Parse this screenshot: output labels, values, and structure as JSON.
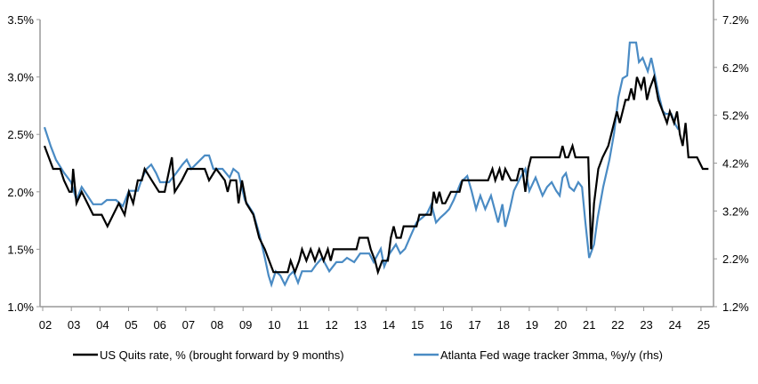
{
  "chart_data": {
    "type": "line",
    "title": "",
    "xlabel": "",
    "ylabel_left": "",
    "ylabel_right": "",
    "x_tick_labels": [
      "02",
      "03",
      "04",
      "05",
      "06",
      "07",
      "08",
      "09",
      "10",
      "11",
      "12",
      "13",
      "14",
      "15",
      "16",
      "17",
      "18",
      "19",
      "20",
      "21",
      "22",
      "23",
      "24",
      "25"
    ],
    "x_range": [
      2002,
      2025.3
    ],
    "y_left": {
      "range": [
        1.0,
        3.5
      ],
      "ticks": [
        "1.0%",
        "1.5%",
        "2.0%",
        "2.5%",
        "3.0%",
        "3.5%"
      ],
      "tick_values": [
        1.0,
        1.5,
        2.0,
        2.5,
        3.0,
        3.5
      ]
    },
    "y_right": {
      "range": [
        1.2,
        7.2
      ],
      "ticks": [
        "1.2%",
        "2.2%",
        "3.2%",
        "4.2%",
        "5.2%",
        "6.2%",
        "7.2%"
      ],
      "tick_values": [
        1.2,
        2.2,
        3.2,
        4.2,
        5.2,
        6.2,
        7.2
      ]
    },
    "grid": false,
    "legend_placement": "bottom",
    "series": [
      {
        "name": "US Quits rate, % (brought forward by 9 months)",
        "axis": "left",
        "color": "#000000",
        "points": [
          [
            2002.0,
            2.4
          ],
          [
            2002.15,
            2.3
          ],
          [
            2002.3,
            2.2
          ],
          [
            2002.55,
            2.2
          ],
          [
            2002.68,
            2.1
          ],
          [
            2002.87,
            2.0
          ],
          [
            2002.95,
            2.0
          ],
          [
            2003.0,
            2.2
          ],
          [
            2003.12,
            1.9
          ],
          [
            2003.3,
            2.0
          ],
          [
            2003.5,
            1.9
          ],
          [
            2003.7,
            1.8
          ],
          [
            2004.0,
            1.8
          ],
          [
            2004.2,
            1.7
          ],
          [
            2004.4,
            1.8
          ],
          [
            2004.6,
            1.9
          ],
          [
            2004.8,
            1.8
          ],
          [
            2004.95,
            2.0
          ],
          [
            2005.1,
            1.9
          ],
          [
            2005.26,
            2.1
          ],
          [
            2005.4,
            2.1
          ],
          [
            2005.5,
            2.2
          ],
          [
            2005.75,
            2.1
          ],
          [
            2006.0,
            2.0
          ],
          [
            2006.2,
            2.0
          ],
          [
            2006.45,
            2.3
          ],
          [
            2006.55,
            2.0
          ],
          [
            2006.8,
            2.1
          ],
          [
            2007.0,
            2.2
          ],
          [
            2007.6,
            2.2
          ],
          [
            2007.75,
            2.1
          ],
          [
            2008.0,
            2.2
          ],
          [
            2008.3,
            2.1
          ],
          [
            2008.4,
            2.0
          ],
          [
            2008.5,
            2.1
          ],
          [
            2008.7,
            2.1
          ],
          [
            2008.78,
            1.9
          ],
          [
            2008.9,
            2.1
          ],
          [
            2009.05,
            1.9
          ],
          [
            2009.3,
            1.8
          ],
          [
            2009.5,
            1.6
          ],
          [
            2009.7,
            1.5
          ],
          [
            2009.85,
            1.4
          ],
          [
            2010.0,
            1.3
          ],
          [
            2010.5,
            1.3
          ],
          [
            2010.6,
            1.4
          ],
          [
            2010.75,
            1.3
          ],
          [
            2010.9,
            1.4
          ],
          [
            2011.0,
            1.5
          ],
          [
            2011.15,
            1.4
          ],
          [
            2011.3,
            1.5
          ],
          [
            2011.45,
            1.4
          ],
          [
            2011.6,
            1.5
          ],
          [
            2011.75,
            1.4
          ],
          [
            2011.9,
            1.5
          ],
          [
            2012.0,
            1.4
          ],
          [
            2012.1,
            1.5
          ],
          [
            2012.9,
            1.5
          ],
          [
            2013.0,
            1.6
          ],
          [
            2013.3,
            1.6
          ],
          [
            2013.4,
            1.5
          ],
          [
            2013.55,
            1.4
          ],
          [
            2013.65,
            1.3
          ],
          [
            2013.8,
            1.4
          ],
          [
            2014.0,
            1.4
          ],
          [
            2014.1,
            1.6
          ],
          [
            2014.2,
            1.7
          ],
          [
            2014.3,
            1.6
          ],
          [
            2014.45,
            1.6
          ],
          [
            2014.55,
            1.7
          ],
          [
            2015.0,
            1.7
          ],
          [
            2015.1,
            1.8
          ],
          [
            2015.5,
            1.8
          ],
          [
            2015.6,
            2.0
          ],
          [
            2015.7,
            1.9
          ],
          [
            2015.8,
            2.0
          ],
          [
            2015.9,
            1.9
          ],
          [
            2016.0,
            1.9
          ],
          [
            2016.2,
            2.0
          ],
          [
            2016.5,
            2.0
          ],
          [
            2016.6,
            2.1
          ],
          [
            2017.5,
            2.1
          ],
          [
            2017.65,
            2.2
          ],
          [
            2017.75,
            2.1
          ],
          [
            2017.9,
            2.2
          ],
          [
            2018.0,
            2.1
          ],
          [
            2018.1,
            2.2
          ],
          [
            2018.3,
            2.1
          ],
          [
            2018.5,
            2.1
          ],
          [
            2018.6,
            2.2
          ],
          [
            2018.7,
            2.2
          ],
          [
            2018.8,
            2.0
          ],
          [
            2018.9,
            2.2
          ],
          [
            2019.0,
            2.3
          ],
          [
            2020.0,
            2.3
          ],
          [
            2020.1,
            2.4
          ],
          [
            2020.2,
            2.3
          ],
          [
            2020.3,
            2.3
          ],
          [
            2020.45,
            2.4
          ],
          [
            2020.55,
            2.3
          ],
          [
            2021.0,
            2.3
          ],
          [
            2021.1,
            1.5
          ],
          [
            2021.2,
            1.9
          ],
          [
            2021.35,
            2.2
          ],
          [
            2021.5,
            2.3
          ],
          [
            2021.7,
            2.4
          ],
          [
            2021.8,
            2.5
          ],
          [
            2022.0,
            2.7
          ],
          [
            2022.1,
            2.6
          ],
          [
            2022.3,
            2.8
          ],
          [
            2022.4,
            2.8
          ],
          [
            2022.5,
            2.9
          ],
          [
            2022.6,
            2.8
          ],
          [
            2022.7,
            3.0
          ],
          [
            2022.85,
            2.9
          ],
          [
            2022.95,
            3.0
          ],
          [
            2023.05,
            2.8
          ],
          [
            2023.15,
            2.9
          ],
          [
            2023.3,
            3.0
          ],
          [
            2023.45,
            2.8
          ],
          [
            2023.6,
            2.7
          ],
          [
            2023.75,
            2.6
          ],
          [
            2023.85,
            2.7
          ],
          [
            2024.0,
            2.6
          ],
          [
            2024.1,
            2.7
          ],
          [
            2024.2,
            2.5
          ],
          [
            2024.3,
            2.4
          ],
          [
            2024.4,
            2.6
          ],
          [
            2024.5,
            2.3
          ],
          [
            2024.8,
            2.3
          ],
          [
            2025.0,
            2.2
          ],
          [
            2025.2,
            2.2
          ]
        ]
      },
      {
        "name": "Atlanta Fed wage tracker 3mma, %y/y (rhs)",
        "axis": "right",
        "color": "#4a8bc4",
        "points": [
          [
            2002.0,
            4.95
          ],
          [
            2002.22,
            4.55
          ],
          [
            2002.4,
            4.27
          ],
          [
            2002.68,
            4.0
          ],
          [
            2002.93,
            3.8
          ],
          [
            2003.12,
            3.43
          ],
          [
            2003.3,
            3.7
          ],
          [
            2003.5,
            3.52
          ],
          [
            2003.7,
            3.34
          ],
          [
            2004.0,
            3.34
          ],
          [
            2004.18,
            3.43
          ],
          [
            2004.5,
            3.43
          ],
          [
            2004.74,
            3.3
          ],
          [
            2004.95,
            3.62
          ],
          [
            2005.26,
            3.62
          ],
          [
            2005.42,
            3.9
          ],
          [
            2005.57,
            4.08
          ],
          [
            2005.73,
            4.17
          ],
          [
            2005.9,
            3.99
          ],
          [
            2006.04,
            3.8
          ],
          [
            2006.35,
            3.8
          ],
          [
            2006.6,
            3.99
          ],
          [
            2006.82,
            4.17
          ],
          [
            2006.97,
            4.27
          ],
          [
            2007.13,
            4.08
          ],
          [
            2007.6,
            4.36
          ],
          [
            2007.75,
            4.36
          ],
          [
            2007.9,
            4.08
          ],
          [
            2008.22,
            4.08
          ],
          [
            2008.47,
            3.9
          ],
          [
            2008.6,
            4.08
          ],
          [
            2008.78,
            3.99
          ],
          [
            2009.0,
            3.43
          ],
          [
            2009.3,
            3.15
          ],
          [
            2009.52,
            2.69
          ],
          [
            2009.7,
            2.22
          ],
          [
            2009.83,
            1.85
          ],
          [
            2009.93,
            1.66
          ],
          [
            2010.08,
            1.94
          ],
          [
            2010.24,
            1.85
          ],
          [
            2010.4,
            1.66
          ],
          [
            2010.55,
            1.85
          ],
          [
            2010.7,
            1.94
          ],
          [
            2010.86,
            1.7
          ],
          [
            2011.0,
            1.94
          ],
          [
            2011.33,
            1.94
          ],
          [
            2011.48,
            2.07
          ],
          [
            2011.7,
            2.22
          ],
          [
            2011.95,
            1.94
          ],
          [
            2012.2,
            2.13
          ],
          [
            2012.4,
            2.13
          ],
          [
            2012.57,
            2.22
          ],
          [
            2012.82,
            2.13
          ],
          [
            2013.03,
            2.31
          ],
          [
            2013.35,
            2.31
          ],
          [
            2013.5,
            2.13
          ],
          [
            2013.75,
            2.41
          ],
          [
            2013.87,
            2.04
          ],
          [
            2014.06,
            2.31
          ],
          [
            2014.28,
            2.5
          ],
          [
            2014.43,
            2.31
          ],
          [
            2014.6,
            2.41
          ],
          [
            2014.8,
            2.69
          ],
          [
            2015.0,
            2.96
          ],
          [
            2015.2,
            3.06
          ],
          [
            2015.37,
            3.15
          ],
          [
            2015.52,
            3.34
          ],
          [
            2015.68,
            2.96
          ],
          [
            2015.83,
            3.06
          ],
          [
            2016.0,
            3.15
          ],
          [
            2016.14,
            3.24
          ],
          [
            2016.3,
            3.43
          ],
          [
            2016.55,
            3.8
          ],
          [
            2016.77,
            3.93
          ],
          [
            2016.92,
            3.62
          ],
          [
            2017.08,
            3.24
          ],
          [
            2017.23,
            3.52
          ],
          [
            2017.4,
            3.24
          ],
          [
            2017.6,
            3.52
          ],
          [
            2017.85,
            2.96
          ],
          [
            2018.0,
            3.34
          ],
          [
            2018.1,
            2.87
          ],
          [
            2018.26,
            3.24
          ],
          [
            2018.4,
            3.62
          ],
          [
            2018.63,
            3.9
          ],
          [
            2018.8,
            4.08
          ],
          [
            2018.94,
            3.62
          ],
          [
            2019.16,
            3.9
          ],
          [
            2019.4,
            3.52
          ],
          [
            2019.56,
            3.7
          ],
          [
            2019.72,
            3.8
          ],
          [
            2019.88,
            3.62
          ],
          [
            2020.0,
            3.52
          ],
          [
            2020.1,
            3.9
          ],
          [
            2020.22,
            3.99
          ],
          [
            2020.34,
            3.7
          ],
          [
            2020.5,
            3.62
          ],
          [
            2020.65,
            3.8
          ],
          [
            2020.78,
            3.7
          ],
          [
            2020.9,
            2.96
          ],
          [
            2021.03,
            2.22
          ],
          [
            2021.2,
            2.5
          ],
          [
            2021.33,
            3.06
          ],
          [
            2021.52,
            3.7
          ],
          [
            2021.74,
            4.27
          ],
          [
            2021.9,
            4.82
          ],
          [
            2022.05,
            5.57
          ],
          [
            2022.2,
            5.97
          ],
          [
            2022.36,
            6.03
          ],
          [
            2022.45,
            6.72
          ],
          [
            2022.67,
            6.72
          ],
          [
            2022.77,
            6.31
          ],
          [
            2022.9,
            6.4
          ],
          [
            2023.08,
            6.12
          ],
          [
            2023.2,
            6.4
          ],
          [
            2023.3,
            6.12
          ],
          [
            2023.45,
            5.66
          ],
          [
            2023.6,
            5.29
          ],
          [
            2023.7,
            5.23
          ],
          [
            2023.9,
            5.23
          ],
          [
            2024.05,
            5.0
          ],
          [
            2024.15,
            4.9
          ]
        ]
      }
    ]
  }
}
